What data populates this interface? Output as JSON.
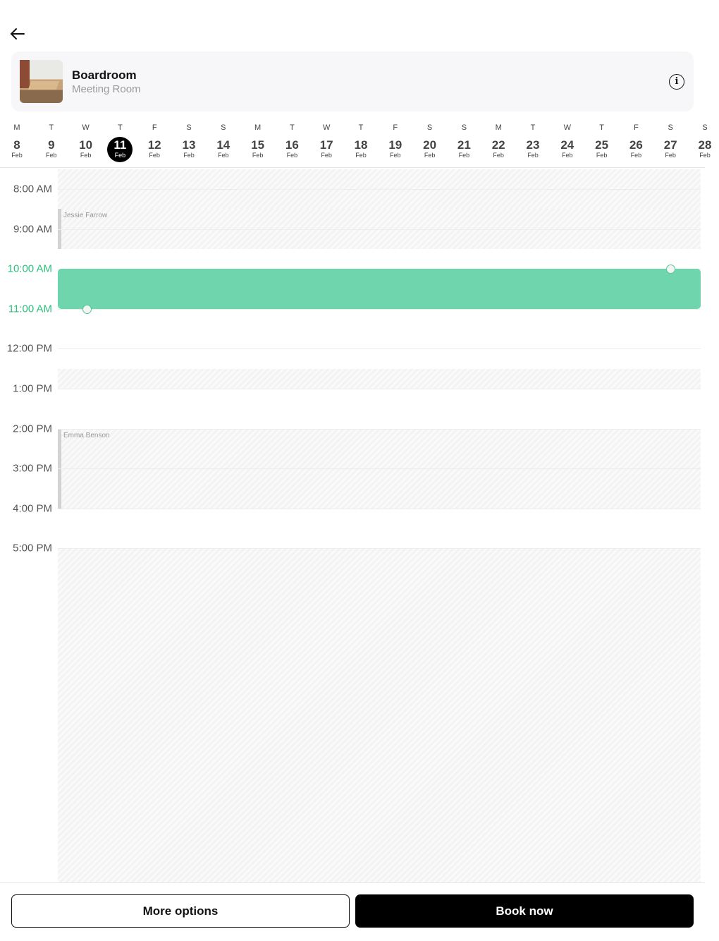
{
  "header": {
    "back_icon": "arrow-left-icon"
  },
  "room": {
    "name": "Boardroom",
    "type": "Meeting Room",
    "info_icon": "info-icon"
  },
  "calendar": {
    "selected": "11",
    "days": [
      {
        "dow": "M",
        "num": "8",
        "mon": "Feb"
      },
      {
        "dow": "T",
        "num": "9",
        "mon": "Feb"
      },
      {
        "dow": "W",
        "num": "10",
        "mon": "Feb"
      },
      {
        "dow": "T",
        "num": "11",
        "mon": "Feb"
      },
      {
        "dow": "F",
        "num": "12",
        "mon": "Feb"
      },
      {
        "dow": "S",
        "num": "13",
        "mon": "Feb"
      },
      {
        "dow": "S",
        "num": "14",
        "mon": "Feb"
      },
      {
        "dow": "M",
        "num": "15",
        "mon": "Feb"
      },
      {
        "dow": "T",
        "num": "16",
        "mon": "Feb"
      },
      {
        "dow": "W",
        "num": "17",
        "mon": "Feb"
      },
      {
        "dow": "T",
        "num": "18",
        "mon": "Feb"
      },
      {
        "dow": "F",
        "num": "19",
        "mon": "Feb"
      },
      {
        "dow": "S",
        "num": "20",
        "mon": "Feb"
      },
      {
        "dow": "S",
        "num": "21",
        "mon": "Feb"
      },
      {
        "dow": "M",
        "num": "22",
        "mon": "Feb"
      },
      {
        "dow": "T",
        "num": "23",
        "mon": "Feb"
      },
      {
        "dow": "W",
        "num": "24",
        "mon": "Feb"
      },
      {
        "dow": "T",
        "num": "25",
        "mon": "Feb"
      },
      {
        "dow": "F",
        "num": "26",
        "mon": "Feb"
      },
      {
        "dow": "S",
        "num": "27",
        "mon": "Feb"
      },
      {
        "dow": "S",
        "num": "28",
        "mon": "Feb"
      }
    ]
  },
  "schedule": {
    "hours": [
      "8:00 AM",
      "9:00 AM",
      "10:00 AM",
      "11:00 AM",
      "12:00 PM",
      "1:00 PM",
      "2:00 PM",
      "3:00 PM",
      "4:00 PM",
      "5:00 PM"
    ],
    "active_hours": [
      "10:00 AM",
      "11:00 AM"
    ],
    "unavailable": [
      {
        "start": 7.5,
        "end": 8.5
      },
      {
        "start": 12.5,
        "end": 13
      },
      {
        "start": 17,
        "end": 25.4
      }
    ],
    "events": [
      {
        "name": "Jessie Farrow",
        "start": 8.5,
        "end": 9.5
      },
      {
        "name": "Emma Benson",
        "start": 14,
        "end": 16
      }
    ],
    "selection": {
      "start": 10,
      "end": 11
    },
    "accent": "#6fd5ad"
  },
  "footer": {
    "more_label": "More options",
    "book_label": "Book now"
  }
}
